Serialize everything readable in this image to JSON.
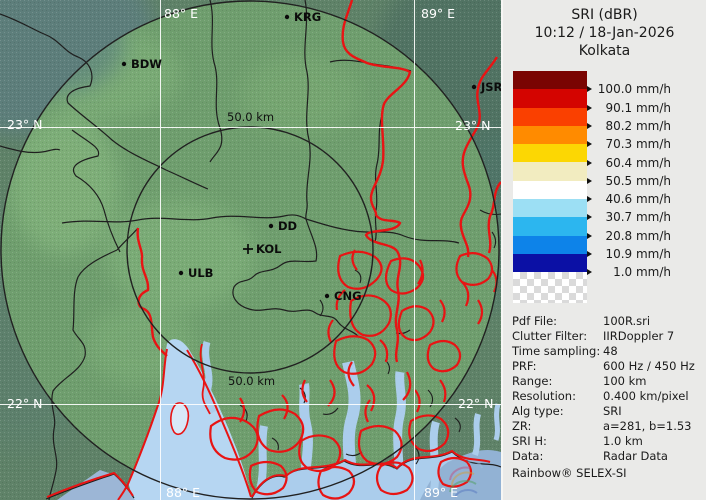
{
  "header": {
    "product": "SRI (dBR)",
    "datetime": "10:12 / 18-Jan-2026",
    "site": "Kolkata"
  },
  "legend": {
    "bands": [
      {
        "color": "#7a0402",
        "label": "100.0 mm/h"
      },
      {
        "color": "#d40400",
        "label": "90.1 mm/h"
      },
      {
        "color": "#fa4000",
        "label": "80.2 mm/h"
      },
      {
        "color": "#ff8b00",
        "label": "70.3 mm/h"
      },
      {
        "color": "#fcd703",
        "label": "60.4 mm/h"
      },
      {
        "color": "#f2ecc0",
        "label": "50.5 mm/h"
      },
      {
        "color": "#ffffff",
        "label": "40.6 mm/h"
      },
      {
        "color": "#9cdff4",
        "label": "30.7 mm/h"
      },
      {
        "color": "#2cb6ef",
        "label": "20.8 mm/h"
      },
      {
        "color": "#0d83e9",
        "label": "10.9 mm/h"
      },
      {
        "color": "#0b10a5",
        "label": "1.0 mm/h"
      }
    ],
    "below_scale_style": "checker-transparent"
  },
  "metadata": [
    {
      "label": "Pdf File:",
      "value": "100R.sri"
    },
    {
      "label": "Clutter Filter:",
      "value": "IIRDoppler 7"
    },
    {
      "label": "Time sampling:",
      "value": "48"
    },
    {
      "label": "PRF:",
      "value": "600 Hz / 450 Hz"
    },
    {
      "label": "Range:",
      "value": "100 km"
    },
    {
      "label": "Resolution:",
      "value": "0.400 km/pixel"
    },
    {
      "label": "Alg type:",
      "value": "SRI"
    },
    {
      "label": "ZR:",
      "value": "a=281, b=1.53"
    },
    {
      "label": "SRI H:",
      "value": "1.0 km"
    },
    {
      "label": "Data:",
      "value": "Radar Data"
    }
  ],
  "brand": "Rainbow® SELEX-SI",
  "map": {
    "grid_labels": {
      "lon_left": "88° E",
      "lon_right": "89° E",
      "lat_top": "23° N",
      "lat_bottom": "22° N"
    },
    "range_ring_label": "50.0 km",
    "cities": [
      {
        "id": "BDW",
        "label": "BDW"
      },
      {
        "id": "KRG",
        "label": "KRG"
      },
      {
        "id": "JSR",
        "label": "JSR"
      },
      {
        "id": "DD",
        "label": "DD"
      },
      {
        "id": "KOL",
        "label": "KOL"
      },
      {
        "id": "ULB",
        "label": "ULB"
      },
      {
        "id": "CNG",
        "label": "CNG"
      }
    ],
    "colors": {
      "land_inside_range": "#6f9e6e",
      "land_outside_range": "#5f8268",
      "water": "#b6d6f2",
      "river_lines": "#e81414",
      "boundary_lines": "#1f1f1f",
      "grid_lines": "#ffffff"
    }
  }
}
